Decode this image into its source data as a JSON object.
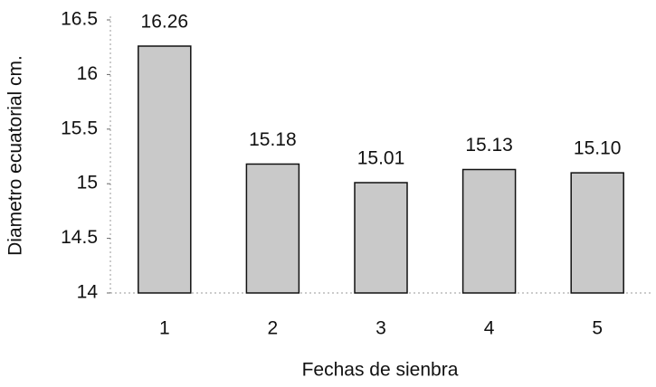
{
  "chart_data": {
    "type": "bar",
    "categories": [
      "1",
      "2",
      "3",
      "4",
      "5"
    ],
    "values": [
      16.26,
      15.18,
      15.01,
      15.13,
      15.1
    ],
    "value_labels": [
      "16.26",
      "15.18",
      "15.01",
      "15.13",
      "15.10"
    ],
    "color": "#c9c9c9",
    "xlabel": "Fechas de sienbra",
    "ylabel": "Diametro ecuatorial cm.",
    "ylim": [
      14,
      16.5
    ],
    "yticks": [
      14,
      14.5,
      15,
      15.5,
      16,
      16.5
    ],
    "grid": false
  }
}
